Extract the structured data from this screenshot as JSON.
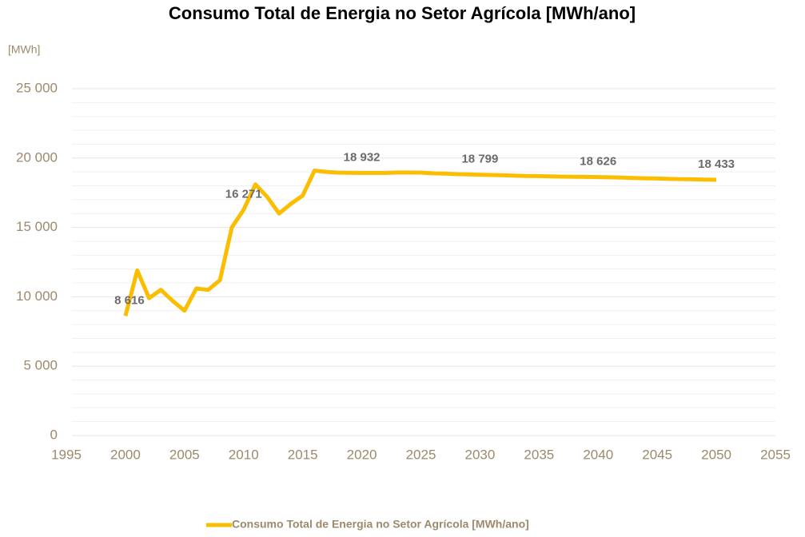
{
  "chart_data": {
    "type": "line",
    "title": "Consumo Total de Energia no Setor Agrícola [MWh/ano]",
    "y_axis_label": "[MWh]",
    "x": [
      2000,
      2001,
      2002,
      2003,
      2004,
      2005,
      2006,
      2007,
      2008,
      2009,
      2010,
      2011,
      2012,
      2013,
      2014,
      2015,
      2016,
      2017,
      2018,
      2019,
      2020,
      2021,
      2022,
      2023,
      2024,
      2025,
      2026,
      2027,
      2028,
      2029,
      2030,
      2031,
      2032,
      2033,
      2034,
      2035,
      2036,
      2037,
      2038,
      2039,
      2040,
      2041,
      2042,
      2043,
      2044,
      2045,
      2046,
      2047,
      2048,
      2049,
      2050
    ],
    "series": [
      {
        "name": "Consumo Total de Energia no Setor Agrícola [MWh/ano]",
        "color": "#fbbd00",
        "values": [
          8616,
          11900,
          9900,
          10500,
          9700,
          9000,
          10600,
          10500,
          11200,
          15000,
          16271,
          18100,
          17200,
          16000,
          16700,
          17300,
          19100,
          19000,
          18950,
          18940,
          18932,
          18930,
          18930,
          18960,
          18960,
          18950,
          18900,
          18880,
          18840,
          18820,
          18799,
          18780,
          18760,
          18730,
          18710,
          18700,
          18680,
          18660,
          18650,
          18640,
          18626,
          18610,
          18590,
          18560,
          18540,
          18530,
          18500,
          18480,
          18470,
          18450,
          18433
        ],
        "value_labels": [
          "8 616",
          null,
          null,
          null,
          null,
          null,
          null,
          null,
          null,
          null,
          "16 271",
          null,
          null,
          null,
          null,
          null,
          null,
          null,
          null,
          null,
          "18 932",
          null,
          null,
          null,
          null,
          null,
          null,
          null,
          null,
          null,
          "18 799",
          null,
          null,
          null,
          null,
          null,
          null,
          null,
          null,
          null,
          "18 626",
          null,
          null,
          null,
          null,
          null,
          null,
          null,
          null,
          null,
          "18 433"
        ]
      }
    ],
    "xlim": [
      1995,
      2055
    ],
    "xticks": [
      1995,
      2000,
      2005,
      2010,
      2015,
      2020,
      2025,
      2030,
      2035,
      2040,
      2045,
      2050,
      2055
    ],
    "ylim": [
      0,
      25000
    ],
    "yticks": [
      {
        "value": 0,
        "label": "0"
      },
      {
        "value": 5000,
        "label": "5 000"
      },
      {
        "value": 10000,
        "label": "10 000"
      },
      {
        "value": 15000,
        "label": "15 000"
      },
      {
        "value": 20000,
        "label": "20 000"
      },
      {
        "value": 25000,
        "label": "25 000"
      }
    ],
    "minor_yticks": [
      1000,
      2000,
      3000,
      4000,
      6000,
      7000,
      8000,
      9000,
      11000,
      12000,
      13000,
      14000,
      16000,
      17000,
      18000,
      19000,
      21000,
      22000,
      23000,
      24000
    ],
    "grid": true,
    "legend": "bottom"
  }
}
